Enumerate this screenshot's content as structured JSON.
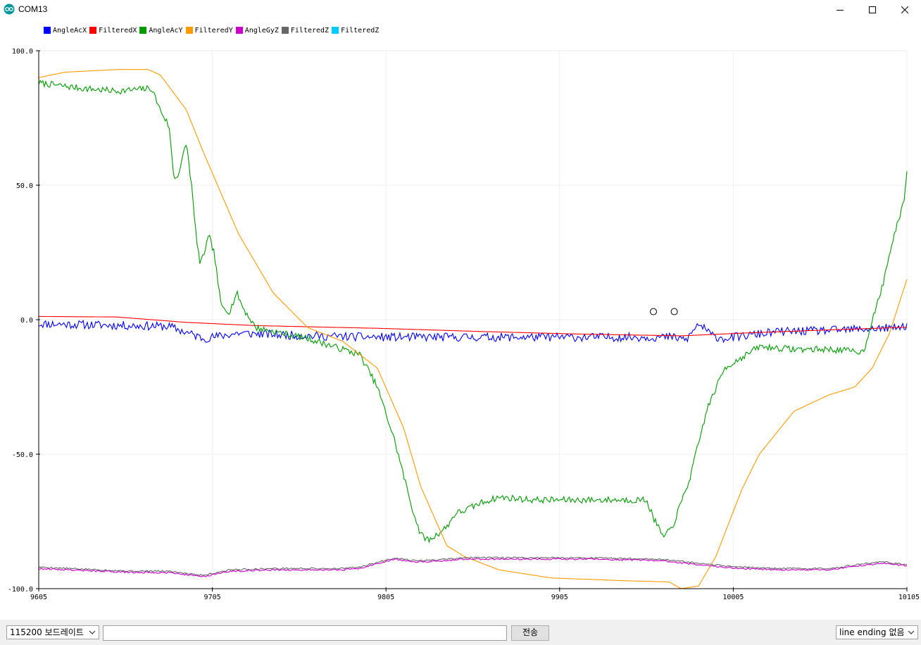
{
  "window": {
    "title": "COM13"
  },
  "legend": [
    {
      "name": "AngleAcX",
      "color": "#0000ff"
    },
    {
      "name": "FilteredX",
      "color": "#ff0000"
    },
    {
      "name": "AngleAcY",
      "color": "#009900"
    },
    {
      "name": "FilteredY",
      "color": "#ff9900"
    },
    {
      "name": "AngleGyZ",
      "color": "#cc00cc"
    },
    {
      "name": "FilteredZ",
      "color": "#666666"
    },
    {
      "name": "FilteredZ",
      "color": "#00ccff"
    }
  ],
  "chart_data": {
    "type": "line",
    "xlim": [
      9605,
      10105
    ],
    "ylim": [
      -100,
      100
    ],
    "x_ticks": [
      "9605",
      "9705",
      "9805",
      "9905",
      "10005",
      "10105"
    ],
    "y_ticks": [
      "100.0",
      "50.0",
      "0.0",
      "-50.0",
      "-100.0"
    ],
    "grid": true,
    "series": [
      {
        "name": "AngleAcX",
        "color": "#0000ff",
        "noise": 1.6,
        "seed": 11,
        "x": [
          9605,
          9680,
          9700,
          9720,
          9760,
          9800,
          9860,
          9930,
          9970,
          9978,
          9985,
          9993,
          10000,
          10030,
          10060,
          10100,
          10105
        ],
        "y": [
          -1.5,
          -2.5,
          -7,
          -5,
          -6,
          -6.5,
          -6.5,
          -6.5,
          -6.5,
          -7.5,
          -1.5,
          -6,
          -7,
          -4.5,
          -4,
          -3,
          -2
        ]
      },
      {
        "name": "FilteredX",
        "color": "#ff0000",
        "noise": 0,
        "seed": 2,
        "x": [
          9605,
          9650,
          9690,
          9730,
          9800,
          9860,
          9920,
          9975,
          10010,
          10060,
          10105
        ],
        "y": [
          1.2,
          1.0,
          -1.0,
          -2.2,
          -3.2,
          -4.4,
          -5.4,
          -6.0,
          -5.0,
          -3.8,
          -2.8
        ]
      },
      {
        "name": "AngleAcY",
        "color": "#009900",
        "noise": 1.2,
        "seed": 7,
        "x": [
          9605,
          9630,
          9650,
          9670,
          9675,
          9680,
          9683,
          9686,
          9690,
          9693,
          9695,
          9698,
          9703,
          9706,
          9710,
          9715,
          9719,
          9723,
          9730,
          9760,
          9790,
          9800,
          9810,
          9820,
          9825,
          9830,
          9840,
          9845,
          9850,
          9860,
          9870,
          9890,
          9930,
          9955,
          9958,
          9960,
          9965,
          9970,
          9980,
          9990,
          10000,
          10020,
          10040,
          10060,
          10080,
          10085,
          10090,
          10097,
          10103,
          10105
        ],
        "y": [
          88,
          86,
          85,
          86,
          78,
          72,
          52,
          55,
          66,
          50,
          35,
          20,
          31,
          25,
          5,
          3,
          10,
          4,
          -3,
          -7,
          -13,
          -25,
          -45,
          -70,
          -80,
          -82,
          -77,
          -72,
          -71,
          -68,
          -66,
          -67,
          -67,
          -67,
          -72,
          -75,
          -81,
          -77,
          -59,
          -33,
          -18,
          -10,
          -11,
          -11,
          -12,
          0,
          10,
          30,
          43,
          55
        ]
      },
      {
        "name": "FilteredY",
        "color": "#ff9900",
        "noise": 0,
        "seed": 3,
        "x": [
          9605,
          9620,
          9650,
          9668,
          9675,
          9690,
          9700,
          9720,
          9740,
          9760,
          9780,
          9800,
          9815,
          9825,
          9840,
          9850,
          9870,
          9900,
          9920,
          9940,
          9968,
          9975,
          9985,
          9995,
          10010,
          10020,
          10040,
          10060,
          10075,
          10085,
          10095,
          10105
        ],
        "y": [
          90,
          92,
          93,
          93,
          91,
          78,
          62,
          32,
          10,
          -3,
          -8,
          -18,
          -40,
          -62,
          -84,
          -88,
          -93,
          -96,
          -96.5,
          -97,
          -97.5,
          -100,
          -99,
          -88,
          -63,
          -50,
          -34,
          -28,
          -25,
          -18,
          -5,
          15
        ]
      },
      {
        "name": "FilteredZ",
        "color": "#666666",
        "noise": 0.3,
        "seed": 5,
        "x": [
          9605,
          9640,
          9660,
          9680,
          9700,
          9715,
          9740,
          9780,
          9790,
          9810,
          9820,
          9830,
          9850,
          9880,
          9920,
          9960,
          9970,
          9990,
          10010,
          10030,
          10060,
          10090,
          10105
        ],
        "y": [
          -92,
          -93,
          -93.5,
          -93.5,
          -95,
          -93,
          -92.5,
          -92.5,
          -92,
          -88.5,
          -89.5,
          -89.5,
          -88.5,
          -88.5,
          -88.5,
          -89,
          -89.5,
          -91,
          -92,
          -92.5,
          -92.5,
          -90,
          -91
        ]
      },
      {
        "name": "AngleGyZ",
        "color": "#cc00cc",
        "noise": 0.3,
        "seed": 9,
        "x": [
          9605,
          9640,
          9660,
          9680,
          9700,
          9715,
          9740,
          9780,
          9790,
          9810,
          9820,
          9830,
          9850,
          9880,
          9920,
          9960,
          9970,
          9990,
          10010,
          10030,
          10060,
          10090,
          10105
        ],
        "y": [
          -92.5,
          -93.5,
          -94,
          -94,
          -95.5,
          -93.5,
          -93,
          -93,
          -92.5,
          -89,
          -90,
          -90,
          -89,
          -89,
          -89,
          -89.5,
          -90,
          -91.5,
          -92.5,
          -93,
          -93,
          -90.5,
          -91.5
        ]
      }
    ],
    "markers": [
      {
        "x": 9959,
        "y": 3
      },
      {
        "x": 9971,
        "y": 3
      }
    ]
  },
  "footer": {
    "baud": "115200 보드레이트",
    "send_input": "",
    "send_label": "전송",
    "line_ending": "line ending 없음"
  }
}
